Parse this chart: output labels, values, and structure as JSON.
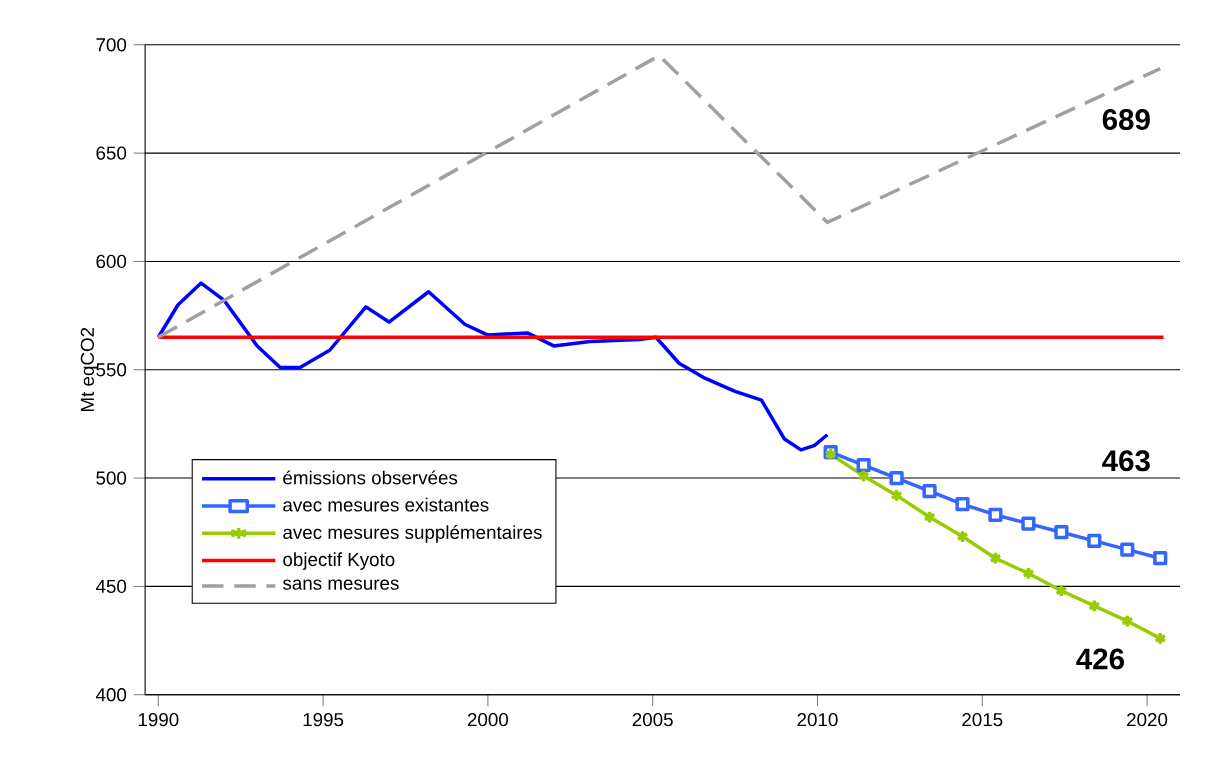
{
  "chart_data": {
    "type": "line",
    "ylabel": "Mt eqCO2",
    "xlim": [
      1989.6,
      2021
    ],
    "ylim": [
      400,
      700
    ],
    "xticks": [
      1990,
      1995,
      2000,
      2005,
      2010,
      2015,
      2020
    ],
    "yticks": [
      400,
      450,
      500,
      550,
      600,
      650,
      700
    ],
    "grid": "y",
    "legend": "left",
    "series": [
      {
        "name": "émissions observées",
        "color": "#0000ff",
        "marker": "none",
        "line_style": "solid",
        "x": [
          1990,
          1990.6,
          1991.3,
          1992,
          1993,
          1993.7,
          1994.3,
          1995.2,
          1996.3,
          1997,
          1998.2,
          1999.3,
          2000,
          2001.2,
          2002,
          2003.1,
          2004.6,
          2005.1,
          2005.8,
          2006.6,
          2007.5,
          2008.3,
          2009,
          2009.5,
          2009.9,
          2010.3
        ],
        "values": [
          565,
          580,
          590,
          582,
          561,
          551,
          551,
          559,
          579,
          572,
          586,
          571,
          566,
          567,
          561,
          563,
          564,
          565,
          553,
          546,
          540,
          536,
          518,
          513,
          515,
          520
        ]
      },
      {
        "name": "avec mesures existantes",
        "color": "#3366ff",
        "marker": "square",
        "line_style": "solid",
        "x": [
          2010.4,
          2011.4,
          2012.4,
          2013.4,
          2014.4,
          2015.4,
          2016.4,
          2017.4,
          2018.4,
          2019.4,
          2020.4
        ],
        "values": [
          512,
          506,
          500,
          494,
          488,
          483,
          479,
          475,
          471,
          467,
          463
        ]
      },
      {
        "name": "avec mesures supplémentaires",
        "color": "#99cc00",
        "marker": "cross",
        "line_style": "solid",
        "x": [
          2010.4,
          2011.4,
          2012.4,
          2013.4,
          2014.4,
          2015.4,
          2016.4,
          2017.4,
          2018.4,
          2019.4,
          2020.4
        ],
        "values": [
          511,
          501,
          492,
          482,
          473,
          463,
          456,
          448,
          441,
          434,
          426
        ]
      },
      {
        "name": "objectif Kyoto",
        "color": "#ff0000",
        "marker": "none",
        "line_style": "solid",
        "x": [
          1990,
          2020.5
        ],
        "values": [
          565,
          565
        ]
      },
      {
        "name": "sans mesures",
        "color": "#a0a0a0",
        "marker": "none",
        "line_style": "dashed",
        "x": [
          1990,
          2005.2,
          2010.3,
          2020.4
        ],
        "values": [
          565,
          695,
          618,
          689
        ]
      }
    ],
    "annotations": [
      "689",
      "463",
      "426"
    ]
  }
}
